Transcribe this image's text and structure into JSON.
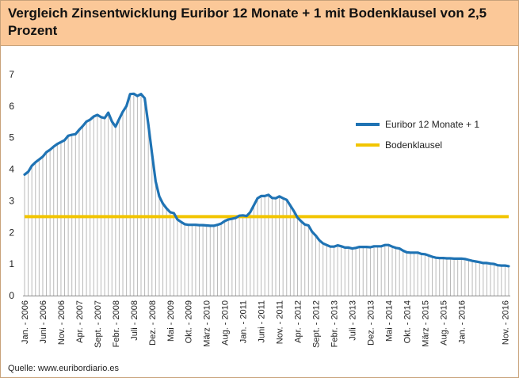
{
  "header": {
    "title": "Vergleich Zinsentwicklung Euribor 12 Monate + 1 mit Bodenklausel von 2,5 Prozent"
  },
  "footer": {
    "source": "Quelle: www.euribordiario.es"
  },
  "colors": {
    "header_bg": "#fbc898",
    "border": "#c8a27a",
    "euribor_line": "#1f73b4",
    "floor_line": "#f2c500",
    "grid_bars": "#b9b9b9"
  },
  "chart_data": {
    "type": "line",
    "title": "Vergleich Zinsentwicklung Euribor 12 Monate + 1 mit Bodenklausel von 2,5 Prozent",
    "xlabel": "",
    "ylabel": "",
    "ylim": [
      0,
      7
    ],
    "yticks": [
      "0",
      "1",
      "2",
      "3",
      "4",
      "5",
      "6",
      "7"
    ],
    "x_tick_labels": [
      "Jan. - 2006",
      "Juni - 2006",
      "Nov. - 2006",
      "Apr. - 2007",
      "Sept. - 2007",
      "Febr. - 2008",
      "Juli - 2008",
      "Dez. - 2008",
      "Mai - 2009",
      "Okt. - 2009",
      "März - 2010",
      "Aug. - 2010",
      "Jan. - 2011",
      "Juni - 2011",
      "Nov. - 2011",
      "Apr. - 2012",
      "Sept. - 2012",
      "Febr. - 2013",
      "Juli - 2013",
      "Dez. - 2013",
      "Mai - 2014",
      "Okt. - 2014",
      "März - 2015",
      "Aug. - 2015",
      "Jan. - 2016",
      "Nov. - 2016"
    ],
    "legend_position": "right",
    "grid": "vertical bars under line",
    "series": [
      {
        "name": "Euribor 12 Monate + 1",
        "color": "#1f73b4",
        "x_start": "2006-01",
        "x_end": "2016-12",
        "values": [
          3.83,
          3.92,
          4.11,
          4.22,
          4.31,
          4.4,
          4.54,
          4.62,
          4.72,
          4.8,
          4.86,
          4.92,
          5.06,
          5.09,
          5.11,
          5.25,
          5.37,
          5.51,
          5.57,
          5.67,
          5.72,
          5.65,
          5.62,
          5.79,
          5.51,
          5.35,
          5.59,
          5.82,
          6.0,
          6.38,
          6.39,
          6.32,
          6.38,
          6.25,
          5.42,
          4.5,
          3.62,
          3.14,
          2.91,
          2.76,
          2.64,
          2.61,
          2.41,
          2.33,
          2.26,
          2.24,
          2.24,
          2.24,
          2.23,
          2.23,
          2.22,
          2.21,
          2.21,
          2.24,
          2.28,
          2.36,
          2.41,
          2.43,
          2.46,
          2.53,
          2.54,
          2.52,
          2.64,
          2.86,
          3.08,
          3.15,
          3.15,
          3.19,
          3.09,
          3.08,
          3.14,
          3.08,
          3.03,
          2.85,
          2.67,
          2.47,
          2.35,
          2.25,
          2.22,
          2.02,
          1.9,
          1.75,
          1.65,
          1.6,
          1.55,
          1.55,
          1.59,
          1.56,
          1.52,
          1.52,
          1.49,
          1.51,
          1.54,
          1.54,
          1.54,
          1.53,
          1.56,
          1.56,
          1.56,
          1.6,
          1.6,
          1.55,
          1.51,
          1.49,
          1.42,
          1.37,
          1.36,
          1.36,
          1.36,
          1.32,
          1.31,
          1.27,
          1.23,
          1.2,
          1.19,
          1.19,
          1.18,
          1.18,
          1.17,
          1.17,
          1.17,
          1.16,
          1.13,
          1.1,
          1.08,
          1.06,
          1.03,
          1.03,
          1.01,
          1.0,
          0.96,
          0.95,
          0.95,
          0.93
        ]
      },
      {
        "name": "Bodenklausel",
        "color": "#f2c500",
        "constant": 2.5
      }
    ]
  }
}
